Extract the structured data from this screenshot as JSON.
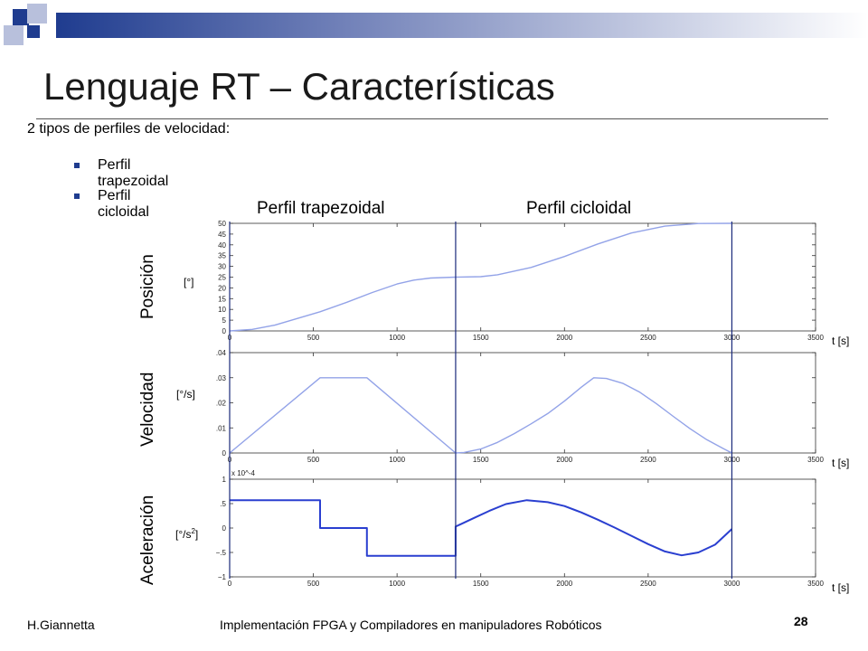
{
  "slide": {
    "title": "Lenguaje RT – Características",
    "intro": "2 tipos de perfiles de velocidad:",
    "bullets": [
      "Perfil trapezoidal",
      "Perfil cicloidal"
    ],
    "section_headers": [
      "Perfil trapezoidal",
      "Perfil cicloidal"
    ],
    "row_labels": [
      "Posición",
      "Velocidad",
      "Aceleración"
    ],
    "units": [
      "[°]",
      "[°/s]",
      "[°/s",
      "2",
      "]"
    ],
    "time_label": "t [s]",
    "footer": {
      "author": "H.Giannetta",
      "course": "Implementación FPGA y Compiladores en manipuladores Robóticos",
      "page": "28"
    },
    "colors": {
      "accent_dark": "#1f3c8f",
      "accent_light": "#b8c0dc",
      "curve": "#93a3e8",
      "accel_curve": "#2a3fd0",
      "divider": "#1a2a7a"
    }
  },
  "chart_data": [
    {
      "type": "line",
      "name": "position",
      "xlim": [
        0,
        3500
      ],
      "ylim": [
        0,
        50
      ],
      "xticks": [
        0,
        500,
        1000,
        1500,
        2000,
        2500,
        3000,
        3500
      ],
      "yticks": [
        0,
        5,
        10,
        15,
        20,
        25,
        30,
        35,
        40,
        45,
        50
      ],
      "grid": false,
      "x": [
        0,
        135,
        270,
        540,
        700,
        850,
        1000,
        1100,
        1200,
        1350,
        1500,
        1600,
        1800,
        2000,
        2200,
        2400,
        2600,
        2800,
        3000
      ],
      "y": [
        0,
        0.7,
        2.7,
        8.9,
        13.3,
        17.8,
        21.8,
        23.6,
        24.6,
        25,
        25.2,
        26.1,
        29.5,
        34.6,
        40.4,
        45.5,
        48.7,
        49.9,
        50
      ]
    },
    {
      "type": "line",
      "name": "velocity",
      "xlim": [
        0,
        3500
      ],
      "ylim": [
        0,
        0.04
      ],
      "xticks": [
        0,
        500,
        1000,
        1500,
        2000,
        2500,
        3000,
        3500
      ],
      "yticks": [
        0,
        0.01,
        0.02,
        0.03,
        0.04
      ],
      "grid": false,
      "x": [
        0,
        540,
        820,
        1350,
        1400,
        1500,
        1600,
        1700,
        1800,
        1900,
        2000,
        2100,
        2175,
        2250,
        2350,
        2450,
        2550,
        2650,
        2750,
        2850,
        2950,
        3000
      ],
      "y": [
        0,
        0.03,
        0.03,
        0,
        0.0002,
        0.0016,
        0.0042,
        0.0077,
        0.0116,
        0.0157,
        0.0207,
        0.0262,
        0.03,
        0.0297,
        0.0277,
        0.0242,
        0.0196,
        0.0146,
        0.0097,
        0.0053,
        0.0017,
        0
      ]
    },
    {
      "type": "line",
      "name": "acceleration",
      "xlim": [
        0,
        3500
      ],
      "ylim": [
        -1,
        1
      ],
      "xticks": [
        0,
        500,
        1000,
        1500,
        2000,
        2500,
        3000,
        3500
      ],
      "yticks": [
        -1,
        -0.5,
        0,
        0.5,
        1
      ],
      "y_scale_factor": "x 10^-4",
      "grid": false,
      "x": [
        0,
        540,
        540,
        820,
        820,
        1350,
        1350,
        1450,
        1550,
        1650,
        1775,
        1900,
        2000,
        2100,
        2200,
        2300,
        2400,
        2500,
        2600,
        2700,
        2800,
        2900,
        3000
      ],
      "y": [
        0.57,
        0.57,
        0,
        0,
        -0.57,
        -0.57,
        0.03,
        0.19,
        0.35,
        0.49,
        0.57,
        0.53,
        0.45,
        0.32,
        0.17,
        0.01,
        -0.16,
        -0.33,
        -0.48,
        -0.56,
        -0.5,
        -0.34,
        -0.02
      ]
    }
  ]
}
